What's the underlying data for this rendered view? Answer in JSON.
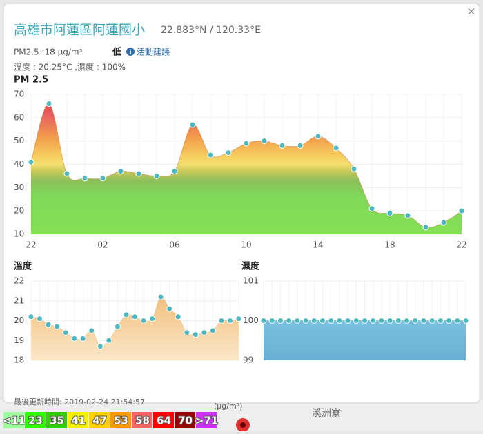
{
  "header": {
    "title": "高雄市阿蓮區阿蓮國小",
    "coords": "22.883°N / 120.33°E",
    "pm": "PM2.5 :18 μg/m³",
    "level": "低",
    "advice": "活動建議",
    "weather": "溫度 : 20.25°C ,濕度 : 100%"
  },
  "chart_data": [
    {
      "type": "area",
      "title": "PM 2.5",
      "categories": [
        "22",
        null,
        null,
        null,
        "02",
        null,
        null,
        null,
        "06",
        null,
        null,
        null,
        "10",
        null,
        null,
        null,
        "14",
        null,
        null,
        null,
        "18",
        null,
        null,
        null,
        "22"
      ],
      "values": [
        41,
        66,
        36,
        34,
        34,
        37,
        36,
        35,
        37,
        57,
        44,
        45,
        49,
        50,
        48,
        48,
        52,
        47,
        38,
        21,
        19,
        18,
        13,
        15,
        20
      ],
      "color": "#c87a3c",
      "ylim": [
        10,
        70
      ],
      "yticks": [
        10,
        20,
        30,
        40,
        50,
        60,
        70
      ],
      "grid": true
    },
    {
      "type": "area",
      "title": "溫度",
      "values": [
        20.2,
        20.1,
        19.8,
        19.7,
        19.4,
        19.1,
        19.1,
        19.5,
        18.7,
        19.0,
        19.7,
        20.3,
        20.2,
        20.0,
        20.1,
        21.2,
        20.6,
        20.2,
        19.4,
        19.3,
        19.4,
        19.5,
        20.0,
        20.0,
        20.1
      ],
      "color": "#e9b36e",
      "ylim": [
        18,
        22
      ],
      "yticks": [
        18,
        19,
        20,
        21,
        22
      ],
      "grid": true
    },
    {
      "type": "area",
      "title": "濕度",
      "values": [
        100,
        100,
        100,
        100,
        100,
        100,
        100,
        100,
        100,
        100,
        100,
        100,
        100,
        100,
        100,
        100,
        100,
        100,
        100,
        100,
        100,
        100,
        100,
        100,
        100
      ],
      "color": "#5ba9d2",
      "ylim": [
        99,
        101
      ],
      "yticks": [
        99,
        100,
        101
      ],
      "grid": true
    }
  ],
  "footer": "最後更新時間: 2019-02-24 21:54:57",
  "legend": {
    "unit": "(μg/m³)",
    "items": [
      {
        "label": "<11",
        "color": "#9cff9c"
      },
      {
        "label": "23",
        "color": "#31ff00"
      },
      {
        "label": "35",
        "color": "#31cf00"
      },
      {
        "label": "41",
        "color": "#f0f000"
      },
      {
        "label": "47",
        "color": "#ffcf00"
      },
      {
        "label": "53",
        "color": "#ff9a00"
      },
      {
        "label": "58",
        "color": "#ff6464"
      },
      {
        "label": "64",
        "color": "#ff0000"
      },
      {
        "label": "70",
        "color": "#990000"
      },
      {
        "label": ">71",
        "color": "#ce30ff"
      }
    ]
  },
  "map": {
    "place": "溪洲寮"
  }
}
